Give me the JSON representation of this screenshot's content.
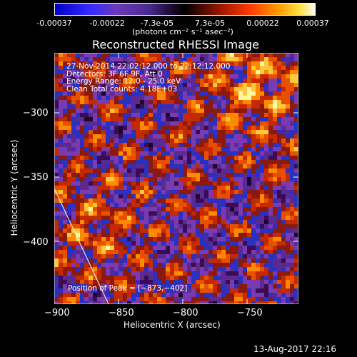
{
  "colorbar": {
    "ticks": [
      "-0.00037",
      "-0.00022",
      "-7.3e-05",
      "7.3e-05",
      "0.00022",
      "0.00037"
    ],
    "units": "(photons cm⁻² s⁻¹ asec⁻²)"
  },
  "plot": {
    "title": "Reconstructed RHESSI Image",
    "xlabel": "Heliocentric X (arcsec)",
    "ylabel": "Heliocentric Y (arcsec)",
    "xticks": [
      "−900",
      "−850",
      "−800",
      "−750"
    ],
    "yticks": [
      "−300",
      "−350",
      "−400"
    ],
    "info": [
      "27-Nov-2014 22:02:12.000 to 22:12:12.000",
      "Detectors: 3F 6F 9F, Att 0",
      "Energy Range: 12.0 - 25.0 keV",
      "Clean     Total counts: 4.18E+03"
    ],
    "peak": "Position of Peak = [−873,−402]"
  },
  "footer_date": "13-Aug-2017 22:16",
  "colors": {
    "background": "#000000",
    "map_low": "#2a0a5e",
    "map_mid": "#d43a00",
    "map_high": "#fff8a0"
  }
}
